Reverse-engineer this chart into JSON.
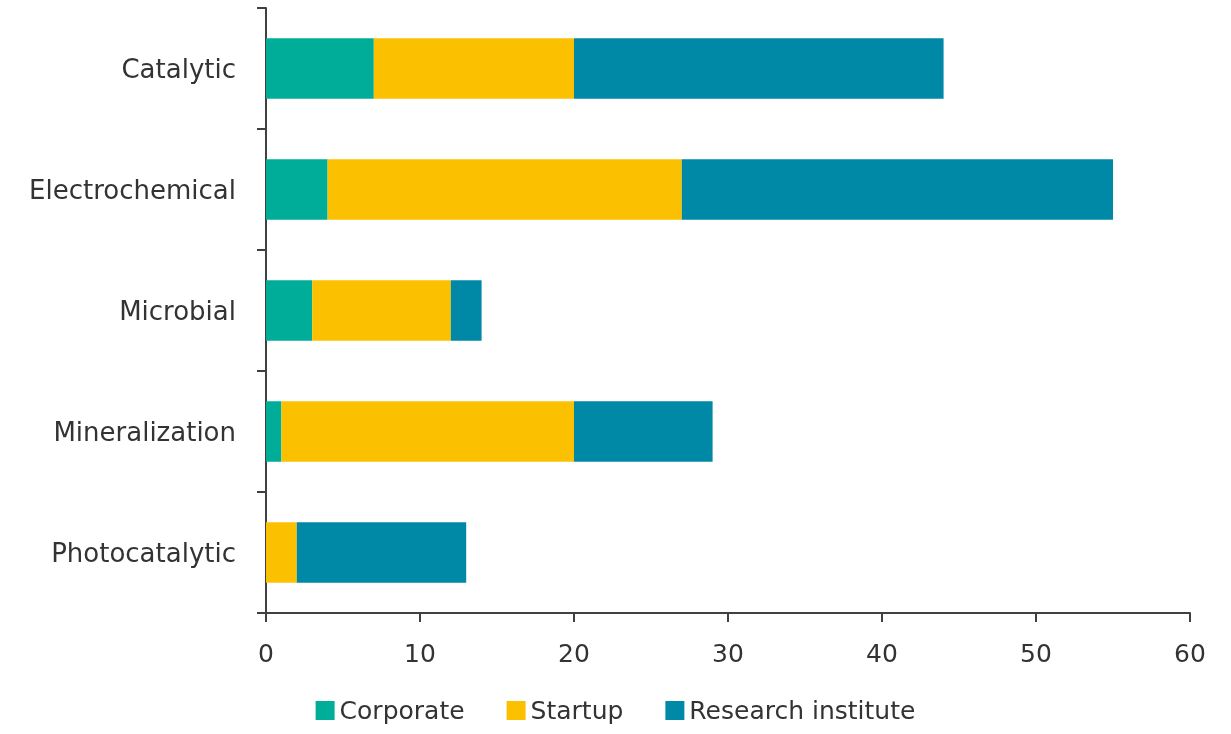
{
  "chart_data": {
    "type": "bar",
    "orientation": "horizontal",
    "stacked": true,
    "categories": [
      "Catalytic",
      "Electrochemical",
      "Microbial",
      "Mineralization",
      "Photocatalytic"
    ],
    "series": [
      {
        "name": "Corporate",
        "color": "#00ad98",
        "values": [
          7,
          4,
          3,
          1,
          0
        ]
      },
      {
        "name": "Startup",
        "color": "#fbc100",
        "values": [
          13,
          23,
          9,
          19,
          2
        ]
      },
      {
        "name": "Research institute",
        "color": "#0088a7",
        "values": [
          24,
          28,
          2,
          9,
          11
        ]
      }
    ],
    "xlim": [
      0,
      60
    ],
    "xticks": [
      0,
      10,
      20,
      30,
      40,
      50,
      60
    ],
    "legend": "bottom"
  }
}
